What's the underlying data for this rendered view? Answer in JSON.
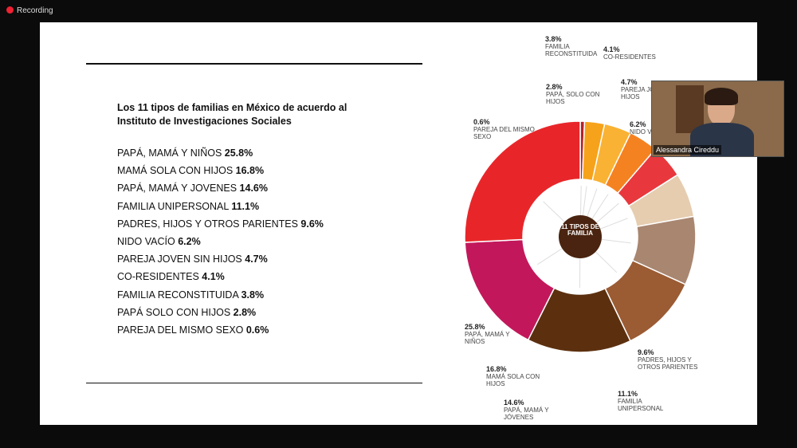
{
  "recording": "Recording",
  "slide": {
    "title": "Los 11 tipos de familias en México de acuerdo al Instituto de Investigaciones Sociales",
    "list": [
      {
        "label": "PAPÁ, MAMÁ Y NIÑOS",
        "value": "25.8%"
      },
      {
        "label": "MAMÁ SOLA CON HIJOS",
        "value": "16.8%"
      },
      {
        "label": "PAPÁ, MAMÁ Y JOVENES",
        "value": "14.6%"
      },
      {
        "label": "FAMILIA UNIPERSONAL",
        "value": "11.1%"
      },
      {
        "label": "PADRES, HIJOS Y OTROS PARIENTES",
        "value": "9.6%"
      },
      {
        "label": "NIDO VACÍO",
        "value": "6.2%"
      },
      {
        "label": "PAREJA JOVEN SIN HIJOS",
        "value": "4.7%"
      },
      {
        "label": "CO-RESIDENTES",
        "value": "4.1%"
      },
      {
        "label": "FAMILIA RECONSTITUIDA",
        "value": "3.8%"
      },
      {
        "label": "PAPÁ SOLO CON HIJOS",
        "value": "2.8%"
      },
      {
        "label": "PAREJA DEL MISMO SEXO",
        "value": "0.6%"
      }
    ]
  },
  "chart_data": {
    "type": "donut",
    "center_label": "11 TIPOS DE FAMILIA",
    "categories": [
      "PAREJA DEL MISMO SEXO",
      "PAPÁ, SOLO CON HIJOS",
      "FAMILIA RECONSTITUIDA",
      "CO-RESIDENTES",
      "PAREJA JOVEN SIN HIJOS",
      "NIDO VACÍO",
      "PADRES, HIJOS Y OTROS PARIENTES",
      "FAMILIA UNIPERSONAL",
      "PAPÁ, MAMÁ Y JÓVENES",
      "MAMÁ SOLA CON HIJOS",
      "PAPÁ, MAMÁ Y NIÑOS"
    ],
    "values": [
      0.6,
      2.8,
      3.8,
      4.1,
      4.7,
      6.2,
      9.6,
      11.1,
      14.6,
      16.8,
      25.8
    ],
    "value_labels": [
      "0.6%",
      "2.8%",
      "3.8%",
      "4.1%",
      "4.7%",
      "6.2%",
      "9.6%",
      "11.1%",
      "14.6%",
      "16.8%",
      "25.8%"
    ],
    "colors": [
      "#b7202a",
      "#f7a21b",
      "#f9b233",
      "#f58220",
      "#e8383d",
      "#e6cdb0",
      "#a98670",
      "#9b5b33",
      "#5c300f",
      "#c2185b",
      "#e8262a"
    ]
  },
  "participant": "Alessandra Cireddu"
}
